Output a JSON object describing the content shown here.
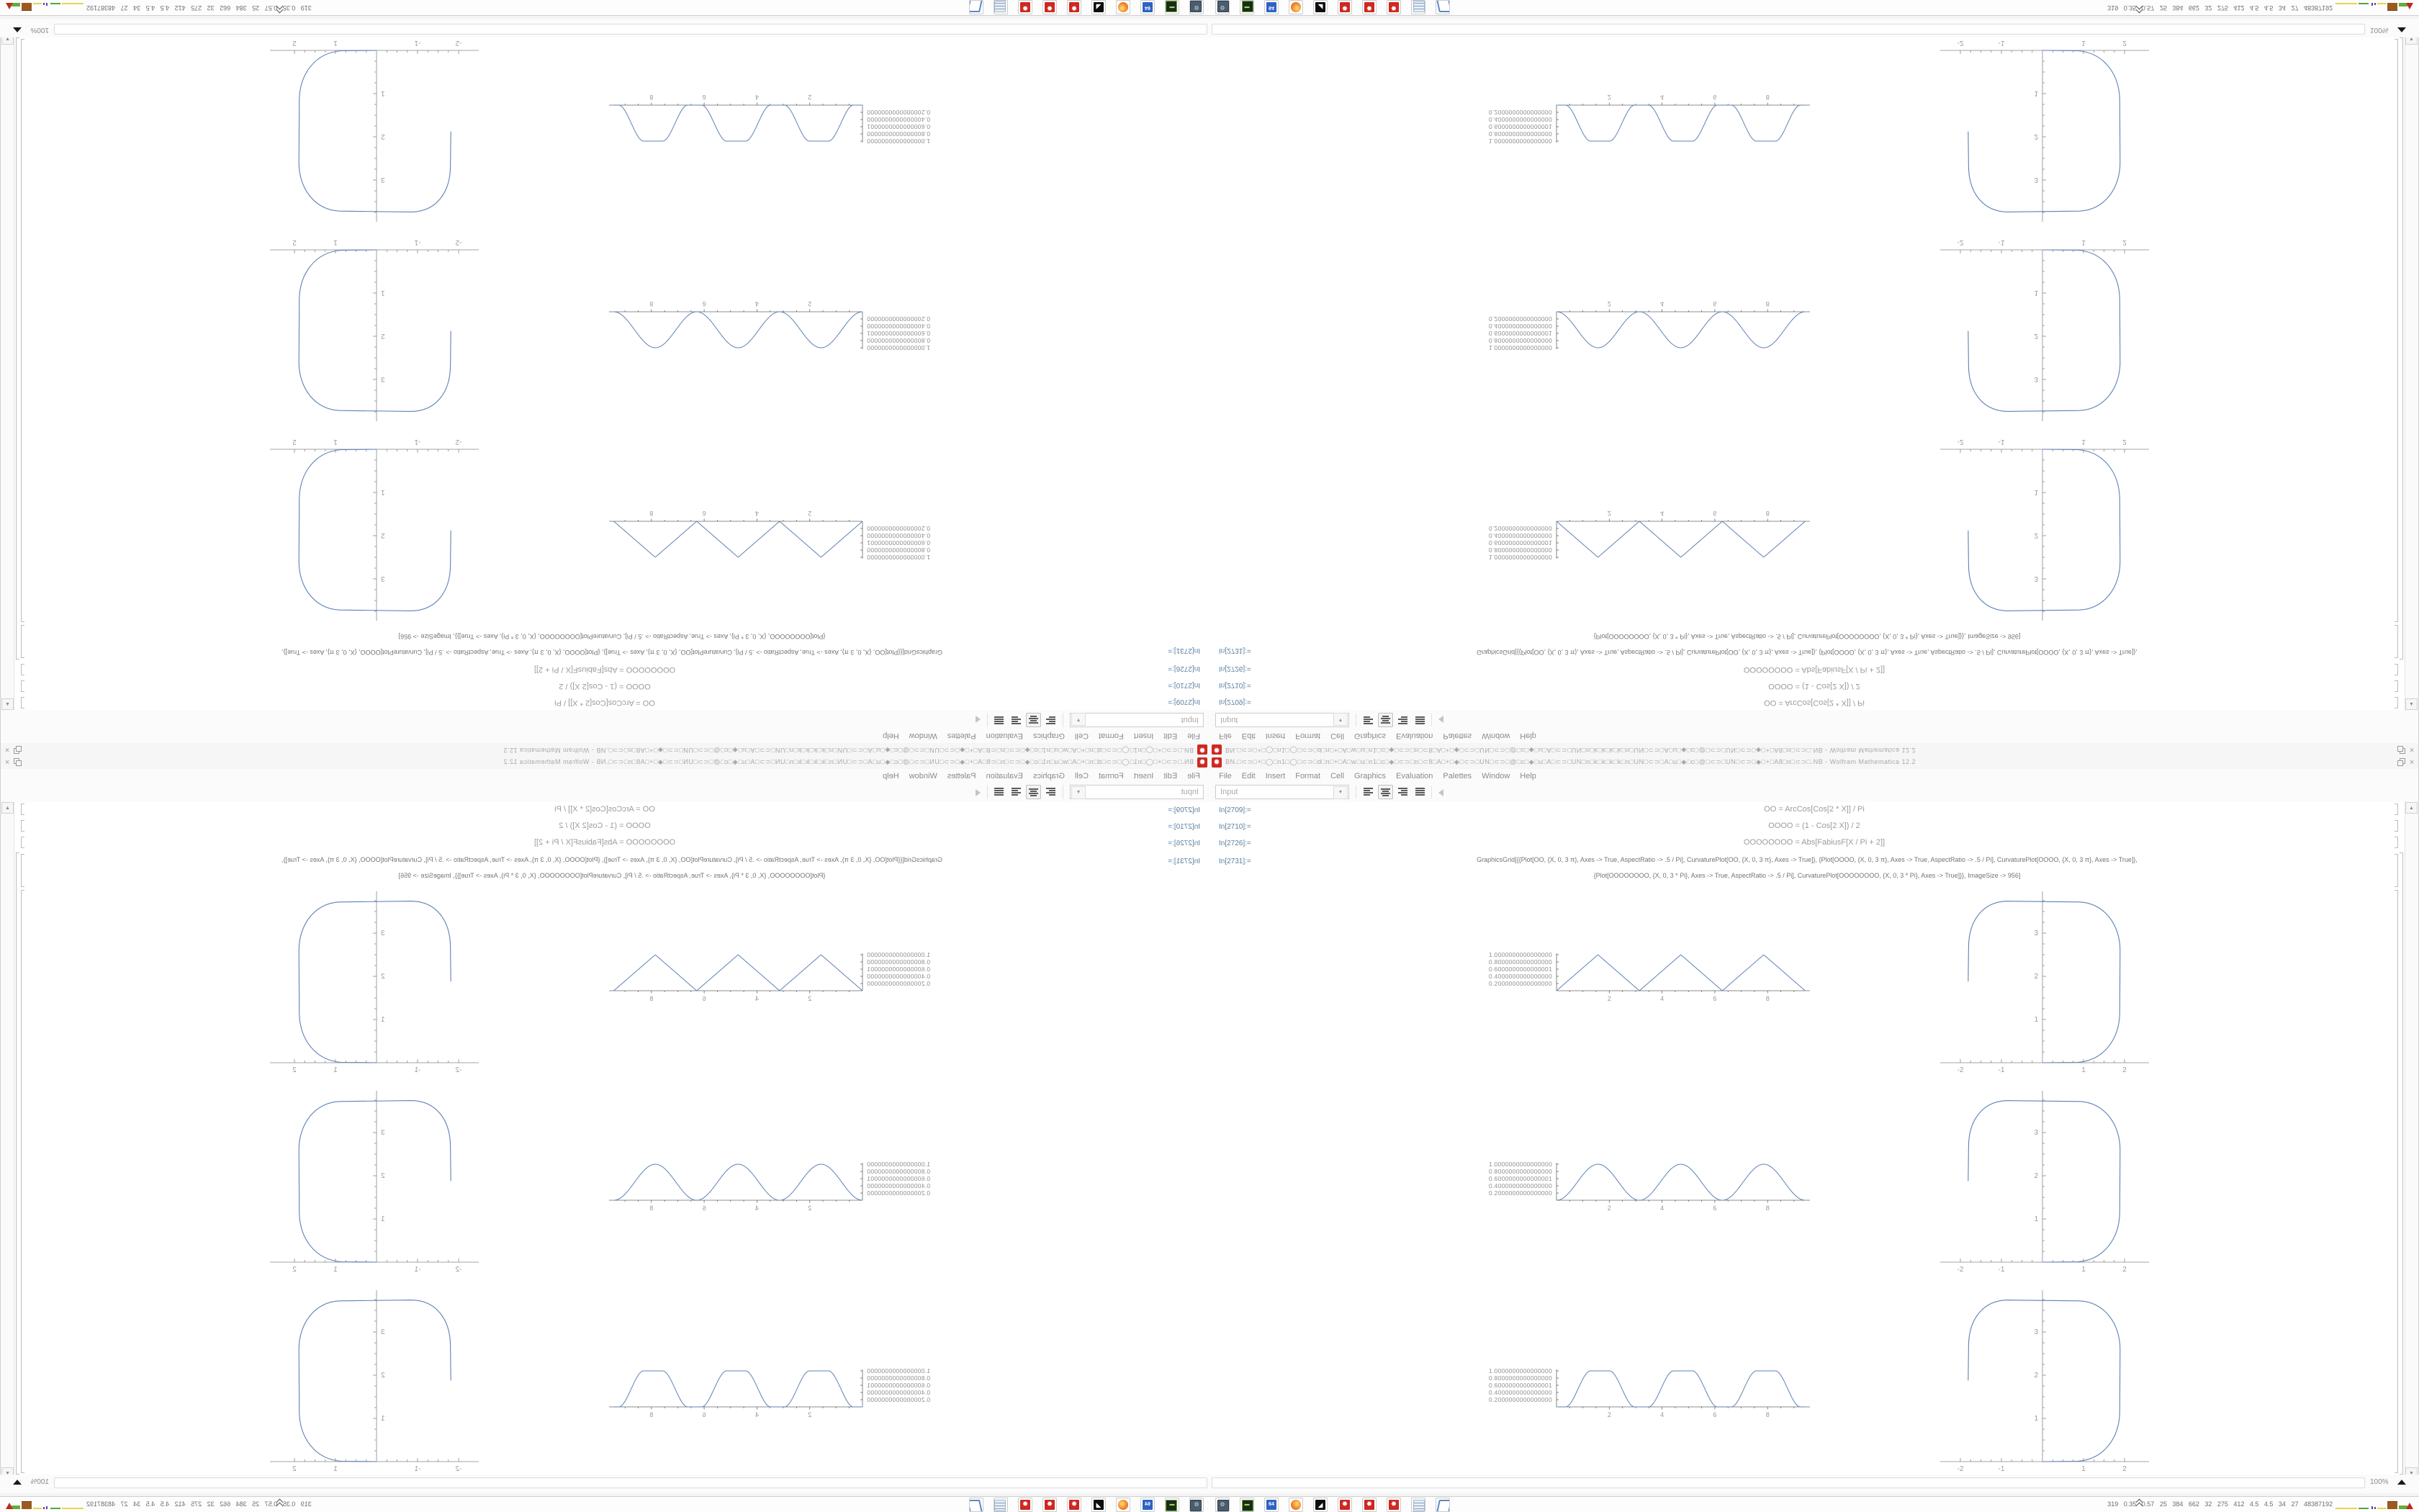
{
  "screen": {
    "magnification": "100%"
  },
  "window": {
    "title": "BN.□⊂⊃□+□◯□n1□◯□⊂⊃□d□n□+□A□w□u□n1□c□◆□⊂⊃□n□⊂8□A□+□◆□⊂⊃□UN□⊂⊃□@□c□◆□u□A□⊂⊃□UN□n□k□k□k□k□n□UN□⊂⊃□A□u□◆□c□@□⊂⊃□UN□⊂⊃□◆□+□A8□n□⊂⊃□.NB - Wolfram Mathematica 12.2",
    "menu": [
      "File",
      "Edit",
      "Insert",
      "Format",
      "Cell",
      "Graphics",
      "Evaluation",
      "Palettes",
      "Window",
      "Help"
    ],
    "toolbar": {
      "cell_style": "Input"
    }
  },
  "cells": [
    {
      "label": "In[2709]:=",
      "code": "OO = ArcCos[Cos[2 * X]] / Pi"
    },
    {
      "label": "In[2710]:=",
      "code": "OOOO = (1 - Cos[2 X]) / 2"
    },
    {
      "label": "In[2726]:=",
      "code": "OOOOOOOO = Abs[FabiusF[X / Pi + 2]]"
    },
    {
      "label": "In[2731]:=",
      "code_line1": "GraphicsGrid[{{Plot[OO, {X, 0, 3 π}, Axes -> True, AspectRatio -> .5 / Pi], CurvaturePlot[OO, {X, 0, 3 π}, Axes -> True]}, {Plot[OOOO, {X, 0, 3 π}, Axes -> True, AspectRatio -> .5 / Pi], CurvaturePlot[OOOO, {X, 0, 3 π}, Axes -> True]},",
      "code_line2": "{Plot[OOOOOOOO, {X, 0, 3 * Pi}, Axes -> True, AspectRatio -> .5 / Pi], CurvaturePlot[OOOOOOOO, {X, 0, 3 * Pi}, Axes -> True]}}, ImageSize -> 956]"
    }
  ],
  "chart_data": [
    {
      "type": "line",
      "name": "triangle-wave",
      "function": "ArcCos[Cos[2 X]] / Pi",
      "x_range": [
        0,
        9.42
      ],
      "y_range": [
        0,
        1
      ],
      "x_ticks": [
        2,
        4,
        6,
        8
      ],
      "y_tick_labels": [
        "1.0000000000000000",
        "0.8000000000000000",
        "0.6000000000000001",
        "0.4000000000000000",
        "0.2000000000000000"
      ],
      "color": "#5e81b5"
    },
    {
      "type": "line",
      "name": "sin-squared-wave",
      "function": "(1 - Cos[2 X]) / 2",
      "x_range": [
        0,
        9.42
      ],
      "y_range": [
        0,
        1
      ],
      "x_ticks": [
        2,
        4,
        6,
        8
      ],
      "y_tick_labels": [
        "1.0000000000000000",
        "0.8000000000000000",
        "0.6000000000000001",
        "0.4000000000000000",
        "0.2000000000000000"
      ],
      "color": "#5e81b5"
    },
    {
      "type": "line",
      "name": "fabius-pulse-wave",
      "function": "Abs[FabiusF[X / Pi + 2]]",
      "x_range": [
        0,
        9.42
      ],
      "y_range": [
        0,
        1
      ],
      "x_ticks": [
        2,
        4,
        6,
        8
      ],
      "y_tick_labels": [
        "1.0000000000000000",
        "0.8000000000000000",
        "0.6000000000000001",
        "0.4000000000000000",
        "0.2000000000000000"
      ],
      "color": "#5e81b5"
    },
    {
      "type": "parametric",
      "name": "curvature-plot",
      "description": "open rounded-square curve from (0,0) up right side to top then down left side ending near (-1.8,1.9)",
      "x_ticks": [
        -2,
        -1,
        1,
        2
      ],
      "y_ticks": [
        1,
        2,
        3
      ],
      "x_range": [
        -2.2,
        2.3
      ],
      "y_range": [
        -0.2,
        3.9
      ],
      "color": "#5e81b5"
    }
  ],
  "taskbar": {
    "status_text": "319  0.35 0.57  25  384  662  32  275  412  4.5  4.5  34  27  48387192",
    "icons": [
      "system-monitor-icon",
      "scanner-icon",
      "floppy64-icon",
      "firefox-icon",
      "gimp-icon",
      "mathematica-icon",
      "mathematica-icon",
      "mathematica-icon",
      "calculator-icon",
      "window-manager-icon"
    ]
  }
}
